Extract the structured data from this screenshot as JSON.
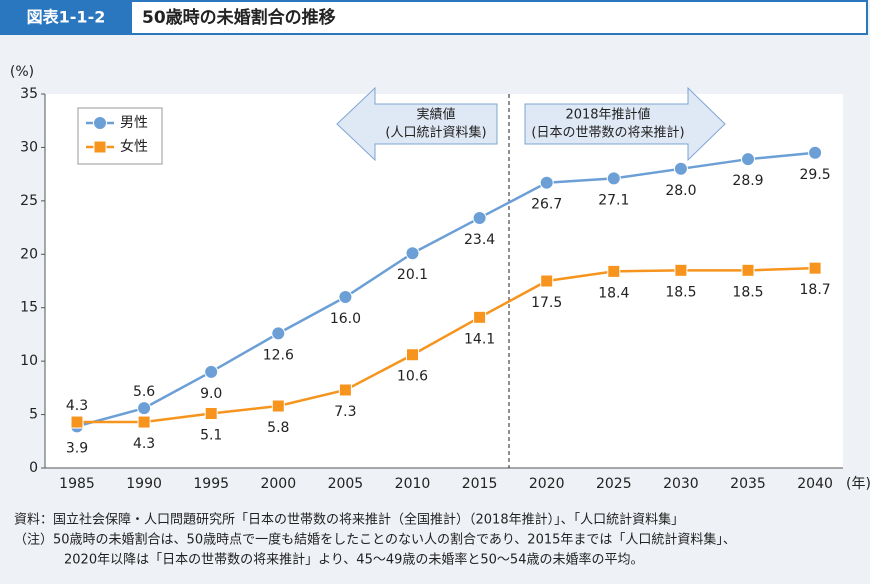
{
  "header": {
    "figure_no": "図表1-1-2",
    "title": "50歳時の未婚割合の推移"
  },
  "chart_data": {
    "type": "line",
    "y_unit": "(%)",
    "x_unit": "(年)",
    "categories": [
      "1985",
      "1990",
      "1995",
      "2000",
      "2005",
      "2010",
      "2015",
      "2020",
      "2025",
      "2030",
      "2035",
      "2040"
    ],
    "series": [
      {
        "name": "男性",
        "color": "#6b9fd6",
        "marker": "circle",
        "values": [
          3.9,
          5.6,
          9.0,
          12.6,
          16.0,
          20.1,
          23.4,
          26.7,
          27.1,
          28.0,
          28.9,
          29.5
        ],
        "value_labels": [
          "3.9",
          "5.6",
          "9.0",
          "12.6",
          "16.0",
          "20.1",
          "23.4",
          "26.7",
          "27.1",
          "28.0",
          "28.9",
          "29.5"
        ]
      },
      {
        "name": "女性",
        "color": "#f7941d",
        "marker": "square",
        "values": [
          4.3,
          4.3,
          5.1,
          5.8,
          7.3,
          10.6,
          14.1,
          17.5,
          18.4,
          18.5,
          18.5,
          18.7
        ],
        "value_labels": [
          "4.3",
          "4.3",
          "5.1",
          "5.8",
          "7.3",
          "10.6",
          "14.1",
          "17.5",
          "18.4",
          "18.5",
          "18.5",
          "18.7"
        ]
      }
    ],
    "ylim": [
      0,
      35
    ],
    "yticks": [
      0,
      5,
      10,
      15,
      20,
      25,
      30,
      35
    ],
    "grid": false,
    "legend": "top-left",
    "annotations": {
      "actual": [
        "実績値",
        "(人口統計資料集)"
      ],
      "projection": [
        "2018年推計値",
        "(日本の世帯数の将来推計)"
      ]
    }
  },
  "notes": [
    "資料：国立社会保障・人口問題研究所「日本の世帯数の将来推計（全国推計）（2018年推計）」、「人口統計資料集」",
    "（注）50歳時の未婚割合は、50歳時点で一度も結婚をしたことのない人の割合であり、2015年までは「人口統計資料集」、",
    "2020年以降は「日本の世帯数の将来推計」より、45～49歳の未婚率と50～54歳の未婚率の平均。"
  ]
}
